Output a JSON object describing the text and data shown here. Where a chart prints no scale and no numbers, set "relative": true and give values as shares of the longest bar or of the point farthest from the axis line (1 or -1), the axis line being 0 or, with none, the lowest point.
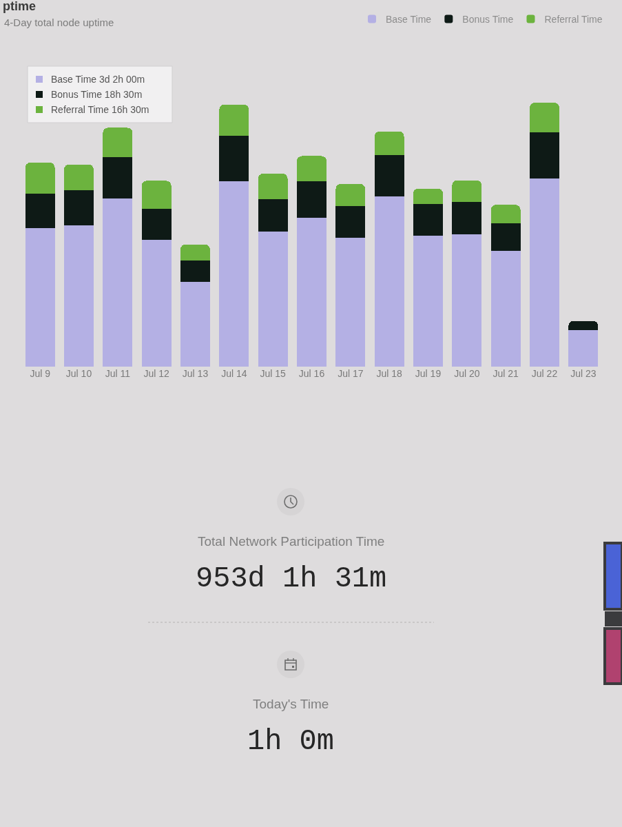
{
  "chart_data": [
    {
      "type": "bar",
      "title": "ptime",
      "subtitle": "4-Day total node uptime",
      "relative": true,
      "stacked": true,
      "legend": "top right",
      "categories": [
        "Jul 9",
        "Jul 10",
        "Jul 11",
        "Jul 12",
        "Jul 13",
        "Jul 14",
        "Jul 15",
        "Jul 16",
        "Jul 17",
        "Jul 18",
        "Jul 19",
        "Jul 20",
        "Jul 21",
        "Jul 22",
        "Jul 23"
      ],
      "series": [
        {
          "name": "Base Time",
          "color": "#b4b0e4",
          "values": [
            0.525,
            0.536,
            0.638,
            0.481,
            0.321,
            0.703,
            0.511,
            0.564,
            0.488,
            0.645,
            0.495,
            0.502,
            0.438,
            0.714,
            0.138
          ]
        },
        {
          "name": "Bonus Time",
          "color": "#0e1a16",
          "values": [
            0.131,
            0.133,
            0.157,
            0.118,
            0.08,
            0.172,
            0.124,
            0.138,
            0.12,
            0.157,
            0.122,
            0.122,
            0.105,
            0.174,
            0.035
          ]
        },
        {
          "name": "Referral Time",
          "color": "#6cb33e",
          "values": [
            0.117,
            0.097,
            0.11,
            0.105,
            0.062,
            0.118,
            0.096,
            0.096,
            0.084,
            0.089,
            0.058,
            0.082,
            0.07,
            0.112,
            0
          ]
        }
      ],
      "annotations": [
        "Base Time 3d 2h 00m",
        "Bonus Time 18h 30m",
        "Referral Time 16h 30m"
      ]
    },
    {
      "type": "other",
      "annotations": [
        "Total Network Participation Time",
        "953d 1h 31m",
        "Today's Time",
        "1h 0m"
      ]
    }
  ]
}
